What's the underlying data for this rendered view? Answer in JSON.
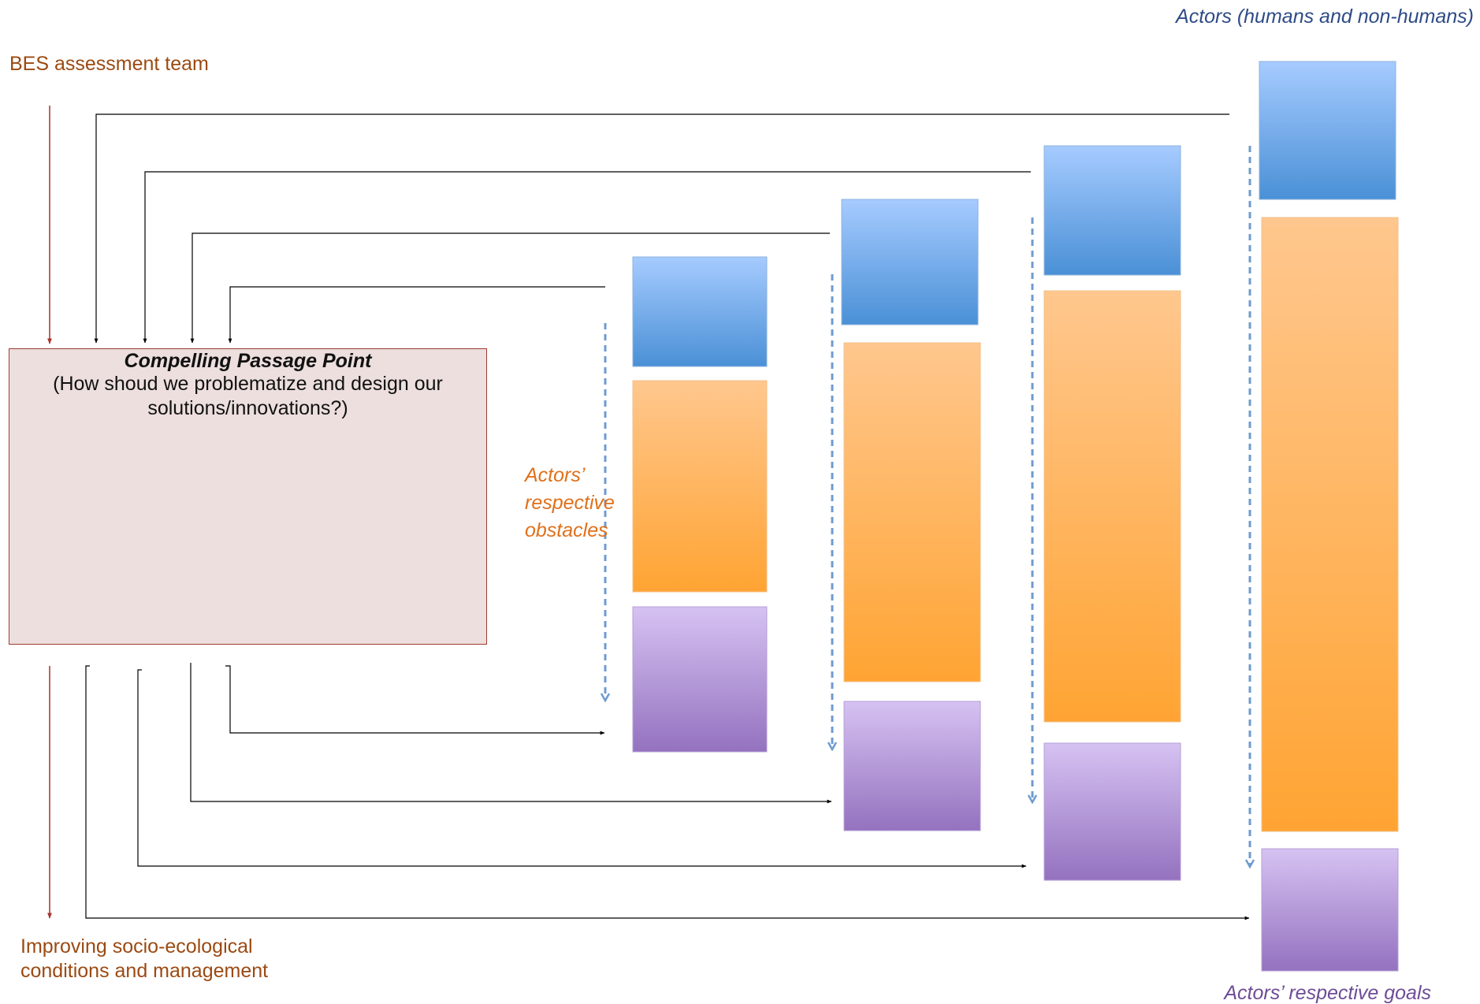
{
  "team_label": "BES assessment team",
  "improve_label_line1": "Improving socio-ecological",
  "improve_label_line2": "conditions and management",
  "actors_label": "Actors (humans and non-humans)",
  "obstacles_label_line1": "Actors’",
  "obstacles_label_line2": "respective",
  "obstacles_label_line3": "obstacles",
  "goals_label": "Actors’ respective goals",
  "cpp": {
    "title": "Compelling Passage Point",
    "question": "(How shoud we problematize and design our solutions/innovations?)"
  },
  "colors": {
    "actor_gradient": [
      "#a6cbff",
      "#4a90d6"
    ],
    "obstacle_gradient": [
      "#ffc78e",
      "#ffa433"
    ],
    "goal_gradient": [
      "#d6c2f2",
      "#9472bf"
    ],
    "cpp_fill": "#ecdfdd",
    "cpp_border": "#9e3a33",
    "team_arrow": "#a8322c",
    "dashed_arrow": "#6e9bd0",
    "connector": "#000000"
  }
}
